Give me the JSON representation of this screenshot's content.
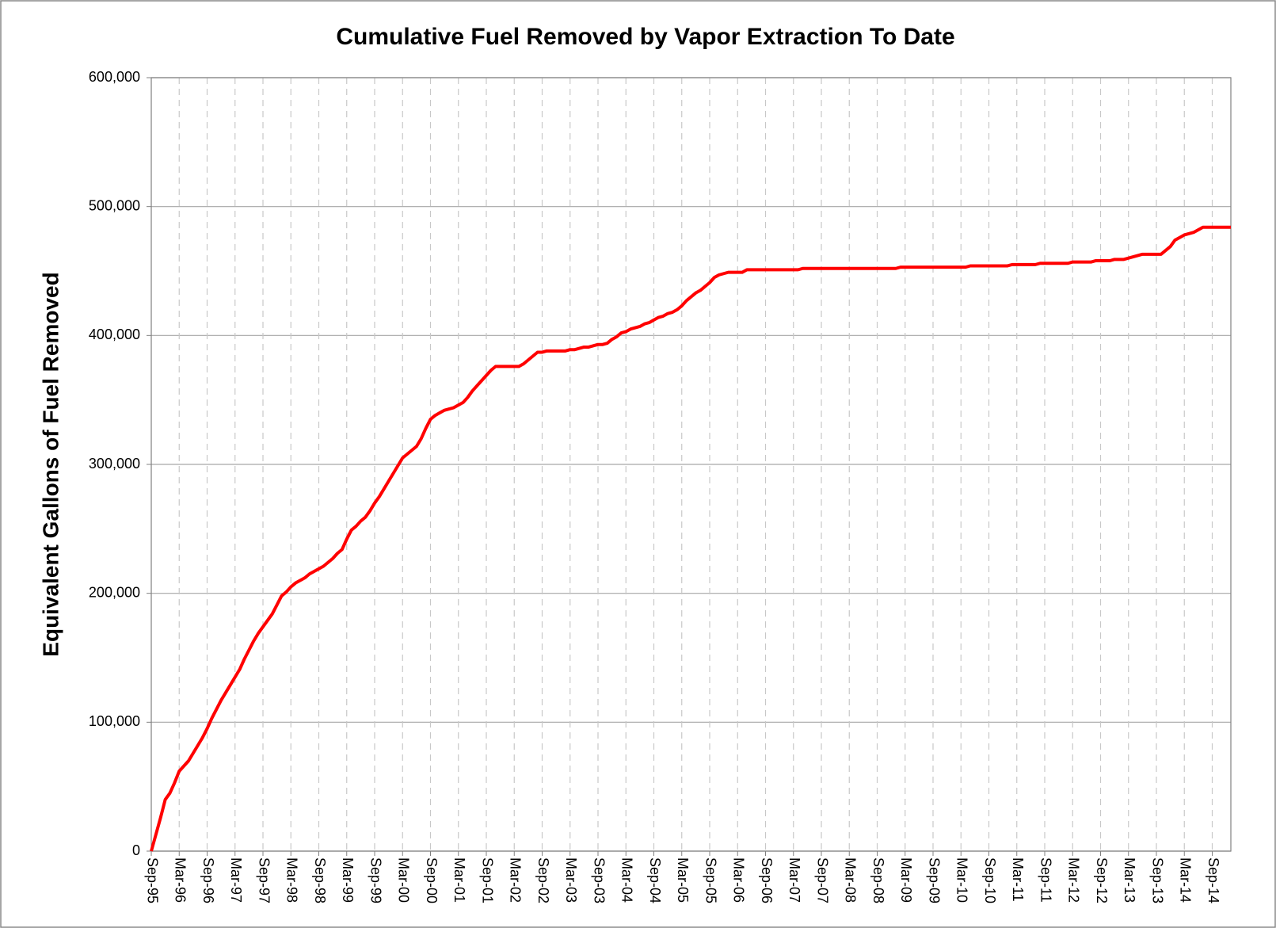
{
  "chart_data": {
    "type": "line",
    "title": "Cumulative Fuel Removed by Vapor Extraction To Date",
    "y_label": "Equivalent Gallons of Fuel Removed",
    "categories": [
      "Sep-95",
      null,
      null,
      null,
      null,
      null,
      "Mar-96",
      null,
      null,
      null,
      null,
      null,
      "Sep-96",
      null,
      null,
      null,
      null,
      null,
      "Mar-97",
      null,
      null,
      null,
      null,
      null,
      "Sep-97",
      null,
      null,
      null,
      null,
      null,
      "Mar-98",
      null,
      null,
      null,
      null,
      null,
      "Sep-98",
      null,
      null,
      null,
      null,
      null,
      "Mar-99",
      null,
      null,
      null,
      null,
      null,
      "Sep-99",
      null,
      null,
      null,
      null,
      null,
      "Mar-00",
      null,
      null,
      null,
      null,
      null,
      "Sep-00",
      null,
      null,
      null,
      null,
      null,
      "Mar-01",
      null,
      null,
      null,
      null,
      null,
      "Sep-01",
      null,
      null,
      null,
      null,
      null,
      "Mar-02",
      null,
      null,
      null,
      null,
      null,
      "Sep-02",
      null,
      null,
      null,
      null,
      null,
      "Mar-03",
      null,
      null,
      null,
      null,
      null,
      "Sep-03",
      null,
      null,
      null,
      null,
      null,
      "Mar-04",
      null,
      null,
      null,
      null,
      null,
      "Sep-04",
      null,
      null,
      null,
      null,
      null,
      "Mar-05",
      null,
      null,
      null,
      null,
      null,
      "Sep-05",
      null,
      null,
      null,
      null,
      null,
      "Mar-06",
      null,
      null,
      null,
      null,
      null,
      "Sep-06",
      null,
      null,
      null,
      null,
      null,
      "Mar-07",
      null,
      null,
      null,
      null,
      null,
      "Sep-07",
      null,
      null,
      null,
      null,
      null,
      "Mar-08",
      null,
      null,
      null,
      null,
      null,
      "Sep-08",
      null,
      null,
      null,
      null,
      null,
      "Mar-09",
      null,
      null,
      null,
      null,
      null,
      "Sep-09",
      null,
      null,
      null,
      null,
      null,
      "Mar-10",
      null,
      null,
      null,
      null,
      null,
      "Sep-10",
      null,
      null,
      null,
      null,
      null,
      "Mar-11",
      null,
      null,
      null,
      null,
      null,
      "Sep-11",
      null,
      null,
      null,
      null,
      null,
      "Mar-12",
      null,
      null,
      null,
      null,
      null,
      "Sep-12",
      null,
      null,
      null,
      null,
      null,
      "Mar-13",
      null,
      null,
      null,
      null,
      null,
      "Sep-13",
      null,
      null,
      null,
      null,
      null,
      "Mar-14",
      null,
      null,
      null,
      null,
      null,
      "Sep-14",
      null,
      null,
      null,
      null
    ],
    "series": [
      {
        "name": "Cumulative Fuel Removed",
        "color": "#ff0000",
        "values": [
          0,
          13000,
          26000,
          40000,
          45000,
          53000,
          62000,
          66000,
          70000,
          76000,
          82000,
          88000,
          95000,
          103000,
          110000,
          117000,
          123000,
          129000,
          135000,
          141000,
          149000,
          156000,
          163000,
          169000,
          174000,
          179000,
          184000,
          191000,
          198000,
          201000,
          205000,
          208000,
          210000,
          212000,
          215000,
          217000,
          219000,
          221000,
          224000,
          227000,
          231000,
          234000,
          242000,
          249000,
          252000,
          256000,
          259000,
          264000,
          270000,
          275000,
          281000,
          287000,
          293000,
          299000,
          305000,
          308000,
          311000,
          314000,
          320000,
          328000,
          335000,
          338000,
          340000,
          342000,
          343000,
          344000,
          346000,
          348000,
          352000,
          357000,
          361000,
          365000,
          369000,
          373000,
          376000,
          376000,
          376000,
          376000,
          376000,
          376000,
          378000,
          381000,
          384000,
          387000,
          387000,
          388000,
          388000,
          388000,
          388000,
          388000,
          389000,
          389000,
          390000,
          391000,
          391000,
          392000,
          393000,
          393000,
          394000,
          397000,
          399000,
          402000,
          403000,
          405000,
          406000,
          407000,
          409000,
          410000,
          412000,
          414000,
          415000,
          417000,
          418000,
          420000,
          423000,
          427000,
          430000,
          433000,
          435000,
          438000,
          441000,
          445000,
          447000,
          448000,
          449000,
          449000,
          449000,
          449000,
          451000,
          451000,
          451000,
          451000,
          451000,
          451000,
          451000,
          451000,
          451000,
          451000,
          451000,
          451000,
          452000,
          452000,
          452000,
          452000,
          452000,
          452000,
          452000,
          452000,
          452000,
          452000,
          452000,
          452000,
          452000,
          452000,
          452000,
          452000,
          452000,
          452000,
          452000,
          452000,
          452000,
          453000,
          453000,
          453000,
          453000,
          453000,
          453000,
          453000,
          453000,
          453000,
          453000,
          453000,
          453000,
          453000,
          453000,
          453000,
          454000,
          454000,
          454000,
          454000,
          454000,
          454000,
          454000,
          454000,
          454000,
          455000,
          455000,
          455000,
          455000,
          455000,
          455000,
          456000,
          456000,
          456000,
          456000,
          456000,
          456000,
          456000,
          457000,
          457000,
          457000,
          457000,
          457000,
          458000,
          458000,
          458000,
          458000,
          459000,
          459000,
          459000,
          460000,
          461000,
          462000,
          463000,
          463000,
          463000,
          463000,
          463000,
          466000,
          469000,
          474000,
          476000,
          478000,
          479000,
          480000,
          482000,
          484000,
          484000,
          484000,
          484000,
          484000,
          484000,
          484000
        ]
      }
    ],
    "ylim": [
      0,
      600000
    ],
    "yticks": [
      0,
      {
        "value": 100000,
        "label": "100,000"
      },
      {
        "value": 200000,
        "label": "200,000"
      },
      {
        "value": 300000,
        "label": "300,000"
      },
      {
        "value": 400000,
        "label": "400,000"
      },
      {
        "value": 500000,
        "label": "500,000"
      },
      {
        "value": 600000,
        "label": "600,000"
      }
    ],
    "grid": true
  }
}
